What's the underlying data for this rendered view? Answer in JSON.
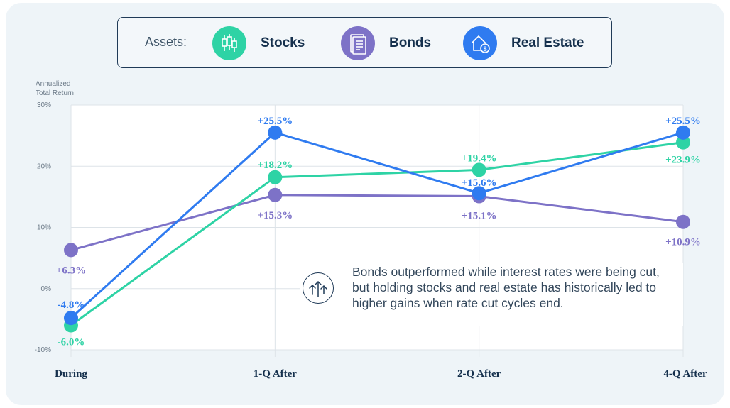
{
  "legend": {
    "title": "Assets:",
    "items": [
      {
        "label": "Stocks",
        "color": "#2ed3a5",
        "icon": "candlestick-chart-icon"
      },
      {
        "label": "Bonds",
        "color": "#7d72c7",
        "icon": "document-icon"
      },
      {
        "label": "Real Estate",
        "color": "#2f7bf0",
        "icon": "house-dollar-icon"
      }
    ]
  },
  "note": {
    "icon": "rising-arrows-icon",
    "text": "Bonds outperformed while interest rates were being cut, but holding stocks and real estate has historically led to higher gains when rate cut cycles end."
  },
  "chart_data": {
    "type": "line",
    "ylabel": "Annualized\nTotal Return",
    "categories": [
      "During",
      "1-Q After",
      "2-Q After",
      "4-Q After"
    ],
    "yticks": [
      "30%",
      "20%",
      "10%",
      "0%",
      "-10%"
    ],
    "ylim": [
      -10,
      30
    ],
    "grid": true,
    "series": [
      {
        "name": "Bonds",
        "color": "#7d72c7",
        "values": [
          6.3,
          15.3,
          15.1,
          10.9
        ],
        "labels": [
          "+6.3%",
          "+15.3%",
          "+15.1%",
          "+10.9%"
        ]
      },
      {
        "name": "Stocks",
        "color": "#2ed3a5",
        "values": [
          -6.0,
          18.2,
          19.4,
          23.9
        ],
        "labels": [
          "-6.0%",
          "+18.2%",
          "+19.4%",
          "+23.9%"
        ]
      },
      {
        "name": "Real Estate",
        "color": "#2f7bf0",
        "values": [
          -4.8,
          25.5,
          15.6,
          25.5
        ],
        "labels": [
          "-4.8%",
          "+25.5%",
          "+15.6%",
          "+25.5%"
        ]
      }
    ]
  }
}
